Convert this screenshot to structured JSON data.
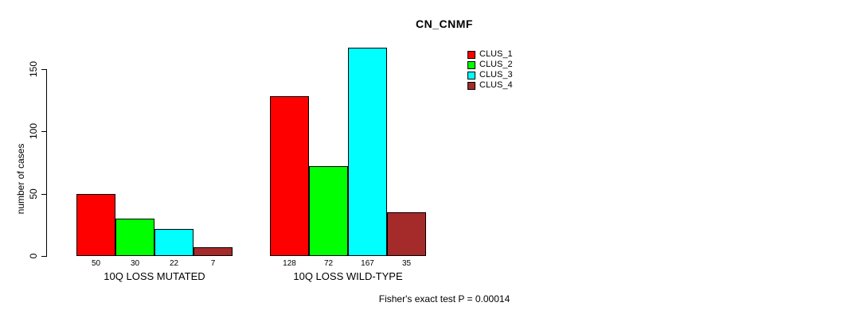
{
  "chart_data": {
    "type": "bar",
    "title": "CN_CNMF",
    "xlabel": "",
    "ylabel": "number of cases",
    "categories": [
      "10Q LOSS MUTATED",
      "10Q LOSS WILD-TYPE"
    ],
    "series": [
      {
        "name": "CLUS_1",
        "color": "#FF0000",
        "values": [
          50,
          128
        ]
      },
      {
        "name": "CLUS_2",
        "color": "#00FF00",
        "values": [
          30,
          72
        ]
      },
      {
        "name": "CLUS_3",
        "color": "#00FFFF",
        "values": [
          22,
          167
        ]
      },
      {
        "name": "CLUS_4",
        "color": "#A52A2A",
        "values": [
          7,
          35
        ]
      }
    ],
    "yticks": [
      0,
      50,
      100,
      150
    ],
    "ylim": [
      0,
      170
    ],
    "grid": false,
    "legend_position": "top-right",
    "bar_value_labels": true,
    "annotation": "Fisher's exact test P = 0.00014"
  }
}
